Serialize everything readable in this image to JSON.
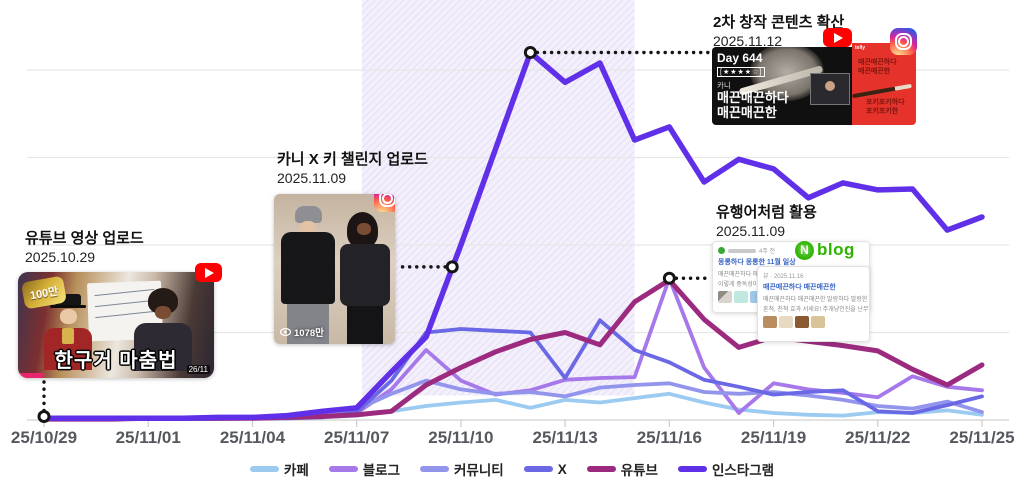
{
  "chart_data": {
    "type": "line",
    "title": "",
    "x_unit": "day",
    "x_start": "25/10/29",
    "x_end": "25/11/25",
    "x_tick_labels": [
      "25/10/29",
      "25/11/01",
      "25/11/04",
      "25/11/07",
      "25/11/10",
      "25/11/13",
      "25/11/16",
      "25/11/19",
      "25/11/22",
      "25/11/25"
    ],
    "ylim": [
      0,
      500
    ],
    "gridline_values": [
      100,
      200,
      300,
      400
    ],
    "grid": true,
    "legend_position": "bottom",
    "highlight_band": {
      "from_day": 9.15,
      "to_day": 17.0,
      "bottom_value": 28,
      "base_color": "#f3effb",
      "hatch_color": "#e2d9f6"
    },
    "series": [
      {
        "key": "cafe",
        "label": "카페",
        "color": "#9CCBF2",
        "width": 3.8,
        "values": [
          2,
          2,
          2,
          2,
          2,
          2,
          2,
          2,
          3,
          5,
          10,
          16,
          20,
          23,
          14,
          23,
          20,
          25,
          30,
          20,
          12,
          8,
          6,
          5,
          9,
          8,
          11,
          6
        ]
      },
      {
        "key": "blog",
        "label": "블로그",
        "color": "#A678EA",
        "width": 3.8,
        "values": [
          2,
          2,
          2,
          2,
          2,
          2,
          2,
          3,
          4,
          8,
          35,
          80,
          45,
          29,
          34,
          46,
          48,
          49,
          162,
          60,
          8,
          42,
          35,
          31,
          26,
          50,
          38,
          34
        ]
      },
      {
        "key": "community",
        "label": "커뮤니티",
        "color": "#9395EC",
        "width": 3.8,
        "values": [
          2,
          2,
          2,
          2,
          2,
          2,
          2,
          3,
          5,
          12,
          30,
          45,
          35,
          30,
          32,
          27,
          37,
          40,
          42,
          32,
          30,
          32,
          28,
          23,
          16,
          13,
          21,
          9
        ]
      },
      {
        "key": "x",
        "label": "X",
        "color": "#6A68E4",
        "width": 3.8,
        "values": [
          1,
          1,
          1,
          1,
          1,
          1,
          2,
          2,
          3,
          9,
          45,
          100,
          104,
          102,
          100,
          48,
          114,
          80,
          66,
          46,
          38,
          29,
          32,
          34,
          10,
          8,
          17,
          27
        ]
      },
      {
        "key": "youtube",
        "label": "유튜브",
        "color": "#9C2B80",
        "width": 5,
        "values": [
          1,
          1,
          1,
          2,
          2,
          2,
          2,
          3,
          4,
          6,
          10,
          40,
          60,
          78,
          92,
          100,
          86,
          135,
          160,
          115,
          83,
          95,
          90,
          85,
          79,
          58,
          40,
          63
        ]
      },
      {
        "key": "instagram",
        "label": "인스타그램",
        "color": "#6030E8",
        "width": 5.5,
        "values": [
          2,
          2,
          2,
          2,
          2,
          3,
          3,
          5,
          10,
          14,
          55,
          95,
          200,
          310,
          420,
          386,
          408,
          320,
          335,
          272,
          298,
          287,
          254,
          271,
          263,
          264,
          217,
          232
        ]
      }
    ],
    "markers": [
      {
        "id": "upload",
        "label": "유튜브 영상 업로드",
        "day": 0,
        "value": 4
      },
      {
        "id": "challenge",
        "label": "카니 X 키 챌린지 업로드",
        "day": 11.75,
        "value": 175
      },
      {
        "id": "spread",
        "label": "2차 창작 콘텐츠 확산",
        "day": 14,
        "value": 420
      },
      {
        "id": "buzzword",
        "label": "유행어처럼 활용",
        "day": 18,
        "value": 162
      }
    ]
  },
  "annotations": {
    "youtube_upload": {
      "title": "유튜브 영상 업로드",
      "date": "2025.10.29",
      "badge": "100만",
      "caption": "한구거 마춤법",
      "duration": "26/11"
    },
    "challenge": {
      "title": "카니 X 키 챌린지 업로드",
      "date": "2025.11.09",
      "views": "1078만"
    },
    "derivative": {
      "title": "2차 창작 콘텐츠 확산",
      "date": "2025.11.12",
      "thumb1": {
        "day": "Day 644",
        "stars": "[★★★★☆]",
        "small": "카니",
        "line1": "매끈매끈하다",
        "line2": "매끈매끈한"
      },
      "thumb2": {
        "watermark": "telly",
        "close": "✕",
        "line1a": "매끈매끈하다",
        "line1b": "매끈매끈한",
        "line2a": "포키포키하다",
        "line2b": "포키포키한"
      }
    },
    "buzzword": {
      "title": "유행어처럼 활용",
      "date": "2025.11.09",
      "logo_n": "N",
      "logo_text": "blog",
      "card1": {
        "meta": "4주 전",
        "title": "몽롱하다 몽롱한 11월 일상",
        "line1": "매끈매끈하다 매끈매끈한 최초공개",
        "line2": "이렇게 중독성이 가득함!"
      },
      "card2": {
        "meta": "뷰 · 2025.11.16",
        "title": "매끈매끈하다 매끈매끈한",
        "line1": "매끈매끈하다 매끈매끈한 말랑하다 말랑한 내",
        "line2": "혼척, 친척 효과 서세요! 주개냥인진을 난무하는"
      }
    }
  }
}
